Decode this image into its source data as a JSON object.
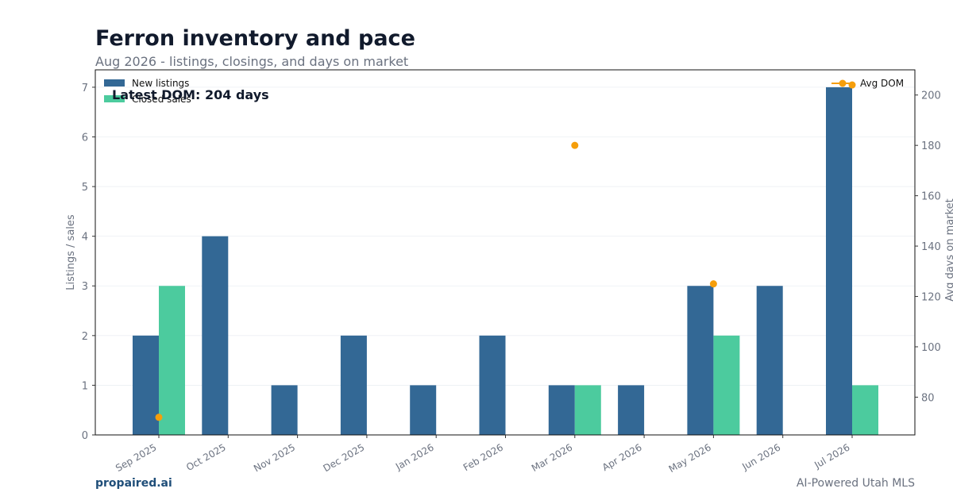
{
  "header": {
    "title": "Ferron inventory and pace",
    "subtitle": "Aug 2026 - listings, closings, and days on market"
  },
  "footer": {
    "brand": "propaired.ai",
    "tagline": "AI-Powered Utah MLS"
  },
  "chart_data": {
    "type": "bar",
    "categories": [
      "Sep 2025",
      "Oct 2025",
      "Nov 2025",
      "Dec 2025",
      "Jan 2026",
      "Feb 2026",
      "Mar 2026",
      "Apr 2026",
      "May 2026",
      "Jun 2026",
      "Jul 2026"
    ],
    "series": [
      {
        "name": "New listings",
        "type": "bar",
        "axis": "left",
        "color": "#336895",
        "values": [
          2,
          4,
          1,
          2,
          1,
          2,
          1,
          1,
          3,
          3,
          7
        ]
      },
      {
        "name": "Closed sales",
        "type": "bar",
        "axis": "left",
        "color": "#4ccb9e",
        "values": [
          3,
          0,
          0,
          0,
          0,
          0,
          1,
          0,
          2,
          0,
          1
        ]
      },
      {
        "name": "Avg DOM",
        "type": "scatter",
        "axis": "right",
        "color": "#f59e0b",
        "values": [
          72,
          null,
          null,
          null,
          null,
          null,
          180,
          null,
          125,
          null,
          204
        ]
      }
    ],
    "ylabel": "Listings / sales",
    "y2label": "Avg days on market",
    "ylim": [
      0,
      7.35
    ],
    "y2lim": [
      65,
      210
    ],
    "yticks": [
      0,
      1,
      2,
      3,
      4,
      5,
      6,
      7
    ],
    "y2ticks": [
      80,
      100,
      120,
      140,
      160,
      180,
      200
    ],
    "annotation": "Latest DOM: 204 days",
    "legend_left": "top-left",
    "legend_right": "top-right",
    "grid": true
  }
}
